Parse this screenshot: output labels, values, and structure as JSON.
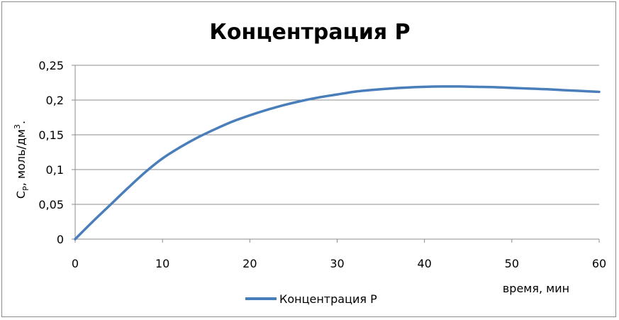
{
  "chart_data": {
    "type": "line",
    "title": "Концентрация P",
    "xlabel": "время, мин",
    "ylabel": {
      "main": "C",
      "sub": "P",
      "rest": ", моль/дм",
      "sup": "3",
      "end": "."
    },
    "xlim": [
      0,
      60
    ],
    "ylim": [
      0,
      0.25
    ],
    "x_ticks": [
      {
        "value": 0,
        "label": "0"
      },
      {
        "value": 10,
        "label": "10"
      },
      {
        "value": 20,
        "label": "20"
      },
      {
        "value": 30,
        "label": "30"
      },
      {
        "value": 40,
        "label": "40"
      },
      {
        "value": 50,
        "label": "50"
      },
      {
        "value": 60,
        "label": "60"
      }
    ],
    "y_ticks": [
      {
        "value": 0,
        "label": "0"
      },
      {
        "value": 0.05,
        "label": "0,05"
      },
      {
        "value": 0.1,
        "label": "0,1"
      },
      {
        "value": 0.15,
        "label": "0,15"
      },
      {
        "value": 0.2,
        "label": "0,2"
      },
      {
        "value": 0.25,
        "label": "0,25"
      }
    ],
    "grid": "horizontal",
    "legend_position": "bottom",
    "series": [
      {
        "name": "Концентрация P",
        "color": "#4a7ebb",
        "x": [
          0,
          2,
          4,
          6,
          8,
          10,
          12,
          14,
          16,
          18,
          20,
          22,
          24,
          26,
          28,
          30,
          32,
          34,
          36,
          38,
          40,
          42,
          44,
          46,
          48,
          50,
          52,
          54,
          56,
          58,
          60
        ],
        "y": [
          0,
          0.025,
          0.049,
          0.073,
          0.096,
          0.116,
          0.132,
          0.146,
          0.158,
          0.169,
          0.178,
          0.186,
          0.193,
          0.199,
          0.204,
          0.208,
          0.212,
          0.2145,
          0.2165,
          0.218,
          0.219,
          0.2195,
          0.2195,
          0.219,
          0.2185,
          0.2175,
          0.2165,
          0.2155,
          0.2142,
          0.213,
          0.2118
        ]
      }
    ]
  }
}
